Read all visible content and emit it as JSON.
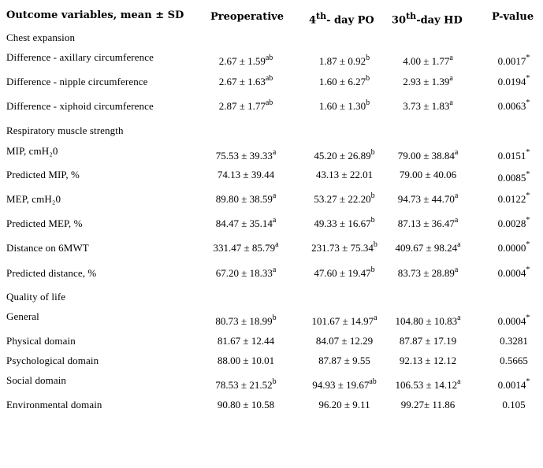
{
  "header": {
    "col0": "Outcome variables, mean ± SD",
    "col1": "Preoperative",
    "col2_num": "4",
    "col2_sup": "th",
    "col2_rest": "- day PO",
    "col3_num": "30",
    "col3_sup": "th",
    "col3_rest": "-day HD",
    "col4": "P-value"
  },
  "rows": [
    {
      "label": "Chest expansion",
      "section": true
    },
    {
      "label": "Difference - axillary  circumference",
      "values": [
        {
          "v": "2.67 ± 1.59",
          "s": "ab"
        },
        {
          "v": "1.87 ± 0.92",
          "s": "b"
        },
        {
          "v": "4.00 ± 1.77",
          "s": "a"
        }
      ],
      "p": {
        "v": "0.0017",
        "s": "*"
      }
    },
    {
      "label": "Difference - nipple circumference",
      "values": [
        {
          "v": "2.67 ± 1.63",
          "s": "ab"
        },
        {
          "v": "1.60 ± 6.27",
          "s": "b"
        },
        {
          "v": "2.93 ± 1.39",
          "s": "a"
        }
      ],
      "p": {
        "v": "0.0194",
        "s": "*"
      }
    },
    {
      "label": "Difference - xiphoid  circumference",
      "values": [
        {
          "v": "2.87 ± 1.77",
          "s": "ab"
        },
        {
          "v": "1.60 ± 1.30",
          "s": "b"
        },
        {
          "v": "3.73 ± 1.83",
          "s": "a"
        }
      ],
      "p": {
        "v": "0.0063",
        "s": "*"
      }
    },
    {
      "label": "Respiratory muscle strength",
      "section": true
    },
    {
      "label": "MIP, cmH₂0",
      "values": [
        {
          "v": "75.53 ± 39.33",
          "s": "a"
        },
        {
          "v": "45.20 ± 26.89",
          "s": "b"
        },
        {
          "v": "79.00 ± 38.84",
          "s": "a"
        }
      ],
      "p": {
        "v": "0.0151",
        "s": "*"
      }
    },
    {
      "label": "Predicted MIP, %",
      "values": [
        {
          "v": "74.13 ± 39.44",
          "s": ""
        },
        {
          "v": "43.13 ± 22.01",
          "s": ""
        },
        {
          "v": "79.00 ± 40.06",
          "s": ""
        }
      ],
      "p": {
        "v": "0.0085",
        "s": "*"
      }
    },
    {
      "label": "MEP, cmH₂0",
      "values": [
        {
          "v": "89.80 ± 38.59",
          "s": "a"
        },
        {
          "v": "53.27 ± 22.20",
          "s": "b"
        },
        {
          "v": "94.73 ± 44.70",
          "s": "a"
        }
      ],
      "p": {
        "v": "0.0122",
        "s": "*"
      }
    },
    {
      "label": "Predicted MEP, %",
      "values": [
        {
          "v": "84.47 ± 35.14",
          "s": "a"
        },
        {
          "v": "49.33 ± 16.67",
          "s": "b"
        },
        {
          "v": "87.13 ± 36.47",
          "s": "a"
        }
      ],
      "p": {
        "v": "0.0028",
        "s": "*"
      }
    },
    {
      "label": "Distance on 6MWT",
      "values": [
        {
          "v": "331.47 ± 85.79",
          "s": "a"
        },
        {
          "v": "231.73 ± 75.34",
          "s": "b"
        },
        {
          "v": "409.67 ± 98.24",
          "s": "a"
        }
      ],
      "p": {
        "v": "0.0000",
        "s": "*"
      }
    },
    {
      "label": "Predicted distance, %",
      "values": [
        {
          "v": "67.20 ± 18.33",
          "s": "a"
        },
        {
          "v": "47.60 ± 19.47",
          "s": "b"
        },
        {
          "v": "83.73 ± 28.89",
          "s": "a"
        }
      ],
      "p": {
        "v": "0.0004",
        "s": "*"
      }
    },
    {
      "label": "Quality of life",
      "section": true
    },
    {
      "label": "General",
      "values": [
        {
          "v": "80.73 ± 18.99",
          "s": "b"
        },
        {
          "v": "101.67 ± 14.97",
          "s": "a"
        },
        {
          "v": "104.80 ± 10.83",
          "s": "a"
        }
      ],
      "p": {
        "v": "0.0004",
        "s": "*"
      }
    },
    {
      "label": "Physical domain",
      "values": [
        {
          "v": "81.67 ± 12.44",
          "s": ""
        },
        {
          "v": "84.07 ± 12.29",
          "s": ""
        },
        {
          "v": "87.87 ± 17.19",
          "s": ""
        }
      ],
      "p": {
        "v": "0.3281",
        "s": ""
      }
    },
    {
      "label": "Psychological domain",
      "values": [
        {
          "v": "88.00 ± 10.01",
          "s": ""
        },
        {
          "v": "87.87 ± 9.55",
          "s": ""
        },
        {
          "v": "92.13 ± 12.12",
          "s": ""
        }
      ],
      "p": {
        "v": "0.5665",
        "s": ""
      }
    },
    {
      "label": "Social domain",
      "values": [
        {
          "v": "78.53 ± 21.52",
          "s": "b"
        },
        {
          "v": "94.93 ± 19.67",
          "s": "ab"
        },
        {
          "v": "106.53 ± 14.12",
          "s": "a"
        }
      ],
      "p": {
        "v": "0.0014",
        "s": "*"
      }
    },
    {
      "label": "Environmental domain",
      "values": [
        {
          "v": "90.80 ± 10.58",
          "s": ""
        },
        {
          "v": "96.20 ± 9.11",
          "s": ""
        },
        {
          "v": "99.27± 11.86",
          "s": ""
        }
      ],
      "p": {
        "v": "0.105",
        "s": ""
      }
    }
  ]
}
